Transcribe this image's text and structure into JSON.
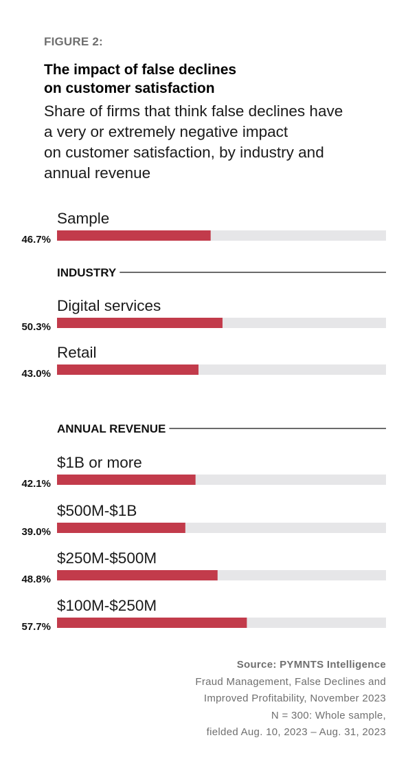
{
  "figure_label": "FIGURE 2:",
  "title_lines": [
    "The impact of false declines",
    "on customer satisfaction"
  ],
  "subtitle_lines": [
    "Share of firms that think false declines have",
    "a very or extremely negative impact",
    "on customer satisfaction, by industry and",
    "annual revenue"
  ],
  "colors": {
    "bar": "#c23b4b",
    "track": "#e6e6e8",
    "rule": "#111111"
  },
  "chart_data": {
    "type": "bar",
    "orientation": "horizontal",
    "unit": "%",
    "xlim": [
      0,
      100
    ],
    "groups": [
      {
        "heading": "",
        "bars": [
          {
            "label": "Sample",
            "value": 46.7,
            "value_label": "46.7%"
          }
        ]
      },
      {
        "heading": "INDUSTRY",
        "bars": [
          {
            "label": "Digital services",
            "value": 50.3,
            "value_label": "50.3%"
          },
          {
            "label": "Retail",
            "value": 43.0,
            "value_label": "43.0%"
          }
        ]
      },
      {
        "heading": "ANNUAL REVENUE",
        "bars": [
          {
            "label": "$1B or more",
            "value": 42.1,
            "value_label": "42.1%"
          },
          {
            "label": "$500M-$1B",
            "value": 39.0,
            "value_label": "39.0%"
          },
          {
            "label": "$250M-$500M",
            "value": 48.8,
            "value_label": "48.8%"
          },
          {
            "label": "$100M-$250M",
            "value": 57.7,
            "value_label": "57.7%"
          }
        ]
      }
    ]
  },
  "source": {
    "title": "Source: PYMNTS Intelligence",
    "lines": [
      "Fraud Management, False Declines and",
      "Improved Profitability, November 2023",
      "N = 300: Whole sample,",
      "fielded Aug. 10, 2023 – Aug. 31, 2023"
    ]
  }
}
